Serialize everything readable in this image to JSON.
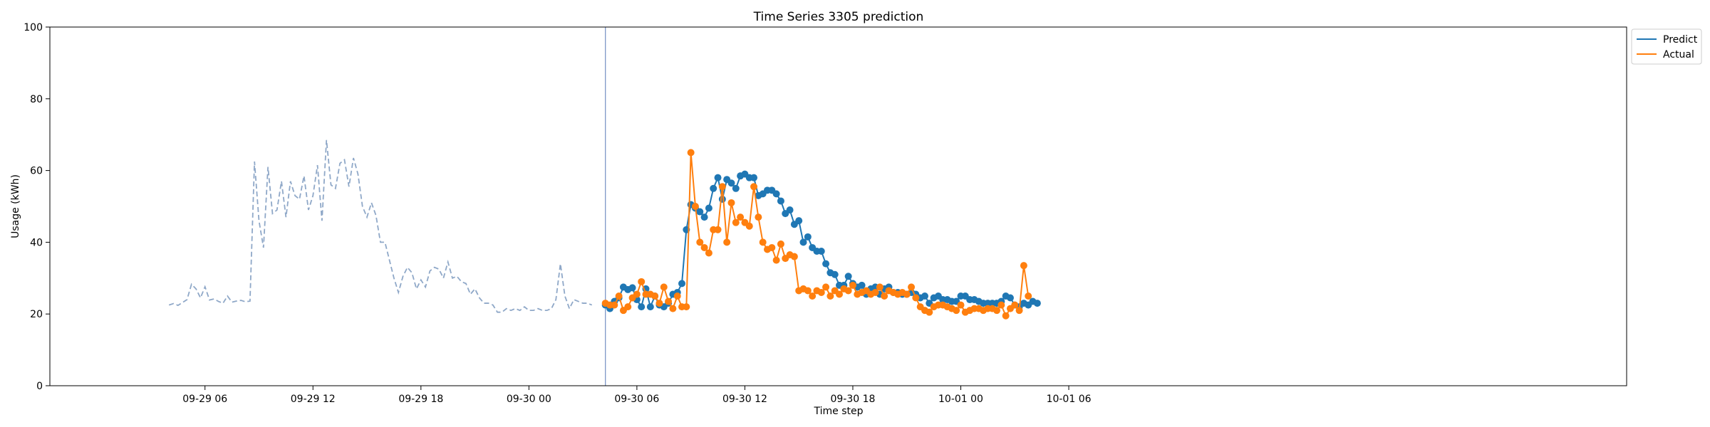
{
  "chart_data": {
    "type": "line",
    "title": "Time Series 3305 prediction",
    "xlabel": "Time step",
    "ylabel": "Usage (kWh)",
    "ylim": [
      0,
      100
    ],
    "xlim": [
      -2.62,
      85.0
    ],
    "x_unit": "hours since 2023-09-29 00:00",
    "x_ticks": [
      {
        "x": 6,
        "label": "09-29 06"
      },
      {
        "x": 12,
        "label": "09-29 12"
      },
      {
        "x": 18,
        "label": "09-29 18"
      },
      {
        "x": 24,
        "label": "09-30 00"
      },
      {
        "x": 30,
        "label": "09-30 06"
      },
      {
        "x": 36,
        "label": "09-30 12"
      },
      {
        "x": 42,
        "label": "09-30 18"
      },
      {
        "x": 48,
        "label": "10-01 00"
      },
      {
        "x": 54,
        "label": "10-01 06"
      }
    ],
    "y_ticks": [
      0,
      20,
      40,
      60,
      80,
      100
    ],
    "grid": false,
    "legend_position": "top-right, outside plot",
    "forecast_start_x": 28.25,
    "series": [
      {
        "name": "",
        "style": "dashed",
        "color": "#8fa8c8",
        "x_start": 4.0,
        "x_step": 0.25,
        "values": [
          22.5,
          22.9,
          22.4,
          23.2,
          24.0,
          28.3,
          27.0,
          24.5,
          27.6,
          23.9,
          24.2,
          23.5,
          23.0,
          25.0,
          23.3,
          23.6,
          23.8,
          23.4,
          23.6,
          62.5,
          46.0,
          38.5,
          61.0,
          48.0,
          49.0,
          57.0,
          47.0,
          57.0,
          53.0,
          52.0,
          58.5,
          49.0,
          53.0,
          61.5,
          46.0,
          68.5,
          56.0,
          55.0,
          62.0,
          63.0,
          55.5,
          63.5,
          59.0,
          50.0,
          47.0,
          51.0,
          47.5,
          40.0,
          40.0,
          35.0,
          30.0,
          26.0,
          30.5,
          33.0,
          31.5,
          27.0,
          29.5,
          27.5,
          32.0,
          33.0,
          32.5,
          30.0,
          34.5,
          30.0,
          30.5,
          29.0,
          28.5,
          25.5,
          27.0,
          24.5,
          23.0,
          23.0,
          22.5,
          20.5,
          20.5,
          21.5,
          21.0,
          21.5,
          21.0,
          22.0,
          21.0,
          21.0,
          21.5,
          21.0,
          21.0,
          21.5,
          24.0,
          34.0,
          25.0,
          21.5,
          24.0,
          23.5,
          23.0,
          23.0,
          22.5
        ]
      },
      {
        "name": "Predict",
        "style": "solid-marker",
        "color": "#1f77b4",
        "x_start": 28.25,
        "x_step": 0.25,
        "values": [
          22.5,
          21.5,
          23.5,
          24.5,
          27.5,
          26.8,
          27.3,
          24.0,
          22.0,
          27.0,
          22.0,
          25.0,
          22.5,
          22.0,
          23.0,
          25.5,
          26.0,
          28.5,
          43.5,
          50.5,
          49.5,
          48.5,
          47.0,
          49.5,
          55.0,
          58.0,
          52.0,
          57.5,
          56.5,
          55.0,
          58.5,
          59.0,
          58.0,
          58.0,
          53.0,
          53.5,
          54.5,
          54.5,
          53.5,
          51.5,
          48.0,
          49.0,
          45.0,
          46.0,
          40.0,
          41.5,
          38.5,
          37.5,
          37.5,
          34.0,
          31.5,
          31.0,
          28.0,
          28.0,
          30.5,
          28.5,
          27.5,
          28.0,
          25.5,
          27.0,
          27.5,
          25.5,
          27.0,
          27.5,
          26.0,
          26.0,
          25.5,
          25.5,
          26.0,
          25.5,
          24.5,
          25.0,
          23.0,
          24.5,
          25.0,
          24.0,
          24.0,
          23.5,
          23.5,
          25.0,
          25.0,
          24.0,
          24.0,
          23.5,
          23.0,
          23.0,
          23.0,
          23.0,
          23.5,
          25.0,
          24.5,
          22.5,
          22.0,
          23.0,
          22.5,
          23.5,
          23.0
        ]
      },
      {
        "name": "Actual",
        "style": "solid-marker",
        "color": "#ff7f0e",
        "x_start": 28.25,
        "x_step": 0.25,
        "values": [
          23.0,
          22.5,
          22.5,
          25.0,
          21.0,
          22.0,
          24.5,
          25.5,
          29.0,
          25.5,
          25.5,
          25.0,
          23.0,
          27.5,
          23.5,
          21.5,
          25.0,
          22.0,
          22.0,
          65.0,
          50.0,
          40.0,
          38.5,
          37.0,
          43.5,
          43.5,
          55.5,
          40.0,
          51.0,
          45.5,
          47.0,
          45.5,
          44.5,
          55.5,
          47.0,
          40.0,
          38.0,
          38.5,
          35.0,
          39.5,
          35.5,
          36.5,
          36.0,
          26.5,
          27.0,
          26.5,
          25.0,
          26.5,
          26.0,
          27.5,
          25.0,
          26.5,
          25.5,
          27.0,
          26.5,
          28.0,
          25.5,
          26.0,
          26.5,
          25.5,
          26.0,
          27.5,
          25.0,
          26.5,
          26.0,
          25.5,
          26.0,
          25.5,
          27.5,
          24.5,
          22.0,
          21.0,
          20.5,
          22.0,
          22.5,
          22.5,
          22.0,
          21.5,
          21.0,
          22.5,
          20.5,
          21.0,
          21.5,
          21.5,
          21.0,
          21.5,
          21.5,
          21.0,
          22.5,
          19.5,
          21.5,
          22.5,
          21.0,
          33.5,
          25.0
        ]
      }
    ],
    "legend": [
      {
        "label": "Predict",
        "color": "#1f77b4"
      },
      {
        "label": "Actual",
        "color": "#ff7f0e"
      }
    ]
  }
}
